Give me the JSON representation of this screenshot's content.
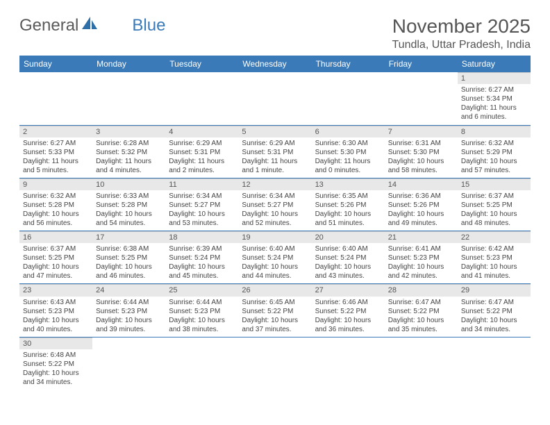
{
  "logo": {
    "text1": "General",
    "text2": "Blue"
  },
  "title": "November 2025",
  "location": "Tundla, Uttar Pradesh, India",
  "daysOfWeek": [
    "Sunday",
    "Monday",
    "Tuesday",
    "Wednesday",
    "Thursday",
    "Friday",
    "Saturday"
  ],
  "colors": {
    "headerBg": "#3a7ab8",
    "headerText": "#ffffff",
    "dayStripBg": "#e8e8e8",
    "rowBorder": "#3a7ab8",
    "bodyText": "#444444"
  },
  "startOffset": 6,
  "days": [
    {
      "n": "1",
      "sr": "6:27 AM",
      "ss": "5:34 PM",
      "dl": "11 hours and 6 minutes."
    },
    {
      "n": "2",
      "sr": "6:27 AM",
      "ss": "5:33 PM",
      "dl": "11 hours and 5 minutes."
    },
    {
      "n": "3",
      "sr": "6:28 AM",
      "ss": "5:32 PM",
      "dl": "11 hours and 4 minutes."
    },
    {
      "n": "4",
      "sr": "6:29 AM",
      "ss": "5:31 PM",
      "dl": "11 hours and 2 minutes."
    },
    {
      "n": "5",
      "sr": "6:29 AM",
      "ss": "5:31 PM",
      "dl": "11 hours and 1 minute."
    },
    {
      "n": "6",
      "sr": "6:30 AM",
      "ss": "5:30 PM",
      "dl": "11 hours and 0 minutes."
    },
    {
      "n": "7",
      "sr": "6:31 AM",
      "ss": "5:30 PM",
      "dl": "10 hours and 58 minutes."
    },
    {
      "n": "8",
      "sr": "6:32 AM",
      "ss": "5:29 PM",
      "dl": "10 hours and 57 minutes."
    },
    {
      "n": "9",
      "sr": "6:32 AM",
      "ss": "5:28 PM",
      "dl": "10 hours and 56 minutes."
    },
    {
      "n": "10",
      "sr": "6:33 AM",
      "ss": "5:28 PM",
      "dl": "10 hours and 54 minutes."
    },
    {
      "n": "11",
      "sr": "6:34 AM",
      "ss": "5:27 PM",
      "dl": "10 hours and 53 minutes."
    },
    {
      "n": "12",
      "sr": "6:34 AM",
      "ss": "5:27 PM",
      "dl": "10 hours and 52 minutes."
    },
    {
      "n": "13",
      "sr": "6:35 AM",
      "ss": "5:26 PM",
      "dl": "10 hours and 51 minutes."
    },
    {
      "n": "14",
      "sr": "6:36 AM",
      "ss": "5:26 PM",
      "dl": "10 hours and 49 minutes."
    },
    {
      "n": "15",
      "sr": "6:37 AM",
      "ss": "5:25 PM",
      "dl": "10 hours and 48 minutes."
    },
    {
      "n": "16",
      "sr": "6:37 AM",
      "ss": "5:25 PM",
      "dl": "10 hours and 47 minutes."
    },
    {
      "n": "17",
      "sr": "6:38 AM",
      "ss": "5:25 PM",
      "dl": "10 hours and 46 minutes."
    },
    {
      "n": "18",
      "sr": "6:39 AM",
      "ss": "5:24 PM",
      "dl": "10 hours and 45 minutes."
    },
    {
      "n": "19",
      "sr": "6:40 AM",
      "ss": "5:24 PM",
      "dl": "10 hours and 44 minutes."
    },
    {
      "n": "20",
      "sr": "6:40 AM",
      "ss": "5:24 PM",
      "dl": "10 hours and 43 minutes."
    },
    {
      "n": "21",
      "sr": "6:41 AM",
      "ss": "5:23 PM",
      "dl": "10 hours and 42 minutes."
    },
    {
      "n": "22",
      "sr": "6:42 AM",
      "ss": "5:23 PM",
      "dl": "10 hours and 41 minutes."
    },
    {
      "n": "23",
      "sr": "6:43 AM",
      "ss": "5:23 PM",
      "dl": "10 hours and 40 minutes."
    },
    {
      "n": "24",
      "sr": "6:44 AM",
      "ss": "5:23 PM",
      "dl": "10 hours and 39 minutes."
    },
    {
      "n": "25",
      "sr": "6:44 AM",
      "ss": "5:23 PM",
      "dl": "10 hours and 38 minutes."
    },
    {
      "n": "26",
      "sr": "6:45 AM",
      "ss": "5:22 PM",
      "dl": "10 hours and 37 minutes."
    },
    {
      "n": "27",
      "sr": "6:46 AM",
      "ss": "5:22 PM",
      "dl": "10 hours and 36 minutes."
    },
    {
      "n": "28",
      "sr": "6:47 AM",
      "ss": "5:22 PM",
      "dl": "10 hours and 35 minutes."
    },
    {
      "n": "29",
      "sr": "6:47 AM",
      "ss": "5:22 PM",
      "dl": "10 hours and 34 minutes."
    },
    {
      "n": "30",
      "sr": "6:48 AM",
      "ss": "5:22 PM",
      "dl": "10 hours and 34 minutes."
    }
  ],
  "labels": {
    "sunrise": "Sunrise:",
    "sunset": "Sunset:",
    "daylight": "Daylight:"
  }
}
